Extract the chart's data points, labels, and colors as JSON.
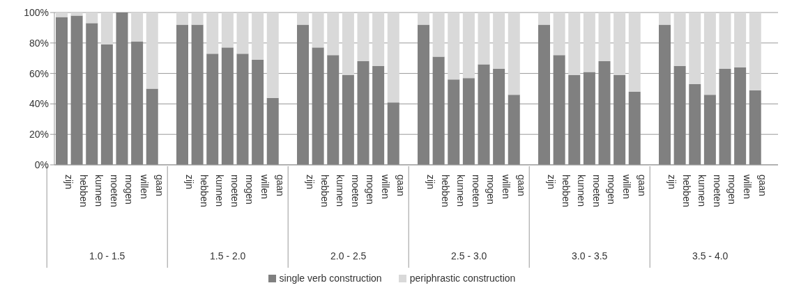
{
  "chart_data": {
    "type": "bar",
    "stacked": true,
    "categories": [
      "zijn",
      "hebben",
      "kunnen",
      "moeten",
      "mogen",
      "willen",
      "gaan",
      "zijn",
      "hebben",
      "kunnen",
      "moeten",
      "mogen",
      "willen",
      "gaan",
      "zijn",
      "hebben",
      "kunnen",
      "moeten",
      "mogen",
      "willen",
      "gaan",
      "zijn",
      "hebben",
      "kunnen",
      "moeten",
      "mogen",
      "willen",
      "gaan",
      "zijn",
      "hebben",
      "kunnen",
      "moeten",
      "mogen",
      "willen",
      "gaan",
      "zijn",
      "hebben",
      "kunnen",
      "moeten",
      "mogen",
      "willen",
      "gaan"
    ],
    "annotations": [
      "1.0 - 1.5",
      "1.5 - 2.0",
      "2.0 - 2.5",
      "2.5 - 3.0",
      "3.0 - 3.5",
      "3.5 - 4.0"
    ],
    "series": [
      {
        "name": "single verb construction",
        "color": "#808080",
        "values": [
          97,
          98,
          93,
          79,
          100,
          81,
          50,
          92,
          92,
          73,
          77,
          73,
          69,
          44,
          92,
          77,
          72,
          59,
          68,
          65,
          41,
          92,
          71,
          56,
          57,
          66,
          63,
          46,
          92,
          72,
          59,
          61,
          68,
          59,
          48,
          92,
          65,
          53,
          46,
          63,
          64,
          49
        ]
      },
      {
        "name": "periphrastic construction",
        "color": "#d9d9d9",
        "values": [
          3,
          2,
          7,
          21,
          0,
          19,
          50,
          8,
          8,
          27,
          23,
          27,
          31,
          56,
          8,
          23,
          28,
          41,
          32,
          35,
          59,
          8,
          29,
          44,
          43,
          34,
          37,
          54,
          8,
          28,
          41,
          39,
          32,
          41,
          52,
          8,
          35,
          47,
          54,
          37,
          36,
          51
        ]
      }
    ],
    "ylim": [
      0,
      100
    ],
    "yticks": [
      {
        "value": 0,
        "label": "0%"
      },
      {
        "value": 20,
        "label": "20%"
      },
      {
        "value": 40,
        "label": "40%"
      },
      {
        "value": 60,
        "label": "60%"
      },
      {
        "value": 80,
        "label": "80%"
      },
      {
        "value": 100,
        "label": "100%"
      }
    ],
    "grid": "y",
    "legend": "bottom"
  }
}
